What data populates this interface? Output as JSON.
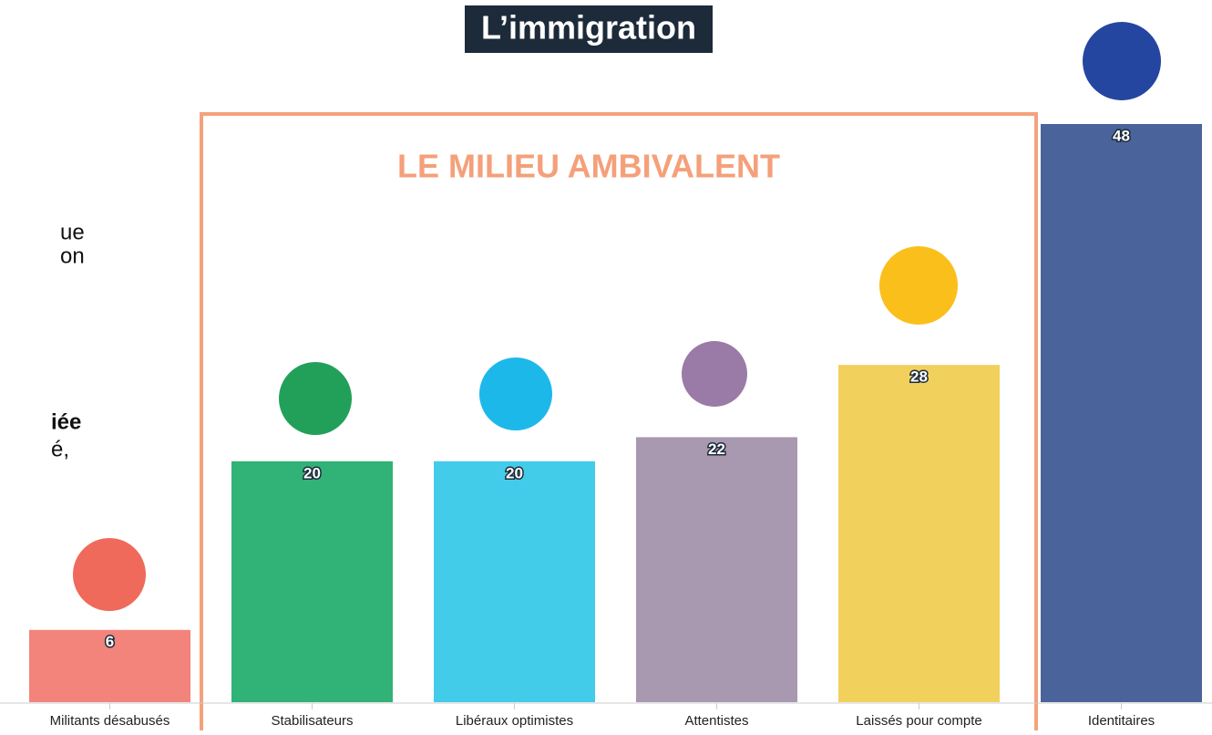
{
  "chart_data": {
    "type": "bar",
    "title": "L’immigration",
    "box_title": "LE MILIEU AMBIVALENT",
    "annotations": [
      "ue",
      "on",
      "iée",
      "é,"
    ],
    "categories": [
      "Militants désabusés",
      "Stabilisateurs",
      "Libéraux optimistes",
      "Attentistes",
      "Laissés pour compte",
      "Identitaires"
    ],
    "values": [
      6,
      20,
      20,
      22,
      28,
      48
    ],
    "colors": [
      "#f2847b",
      "#31b276",
      "#43cbea",
      "#a898b0",
      "#f2d05c",
      "#4a649b"
    ],
    "ylim": [
      0,
      48
    ]
  }
}
